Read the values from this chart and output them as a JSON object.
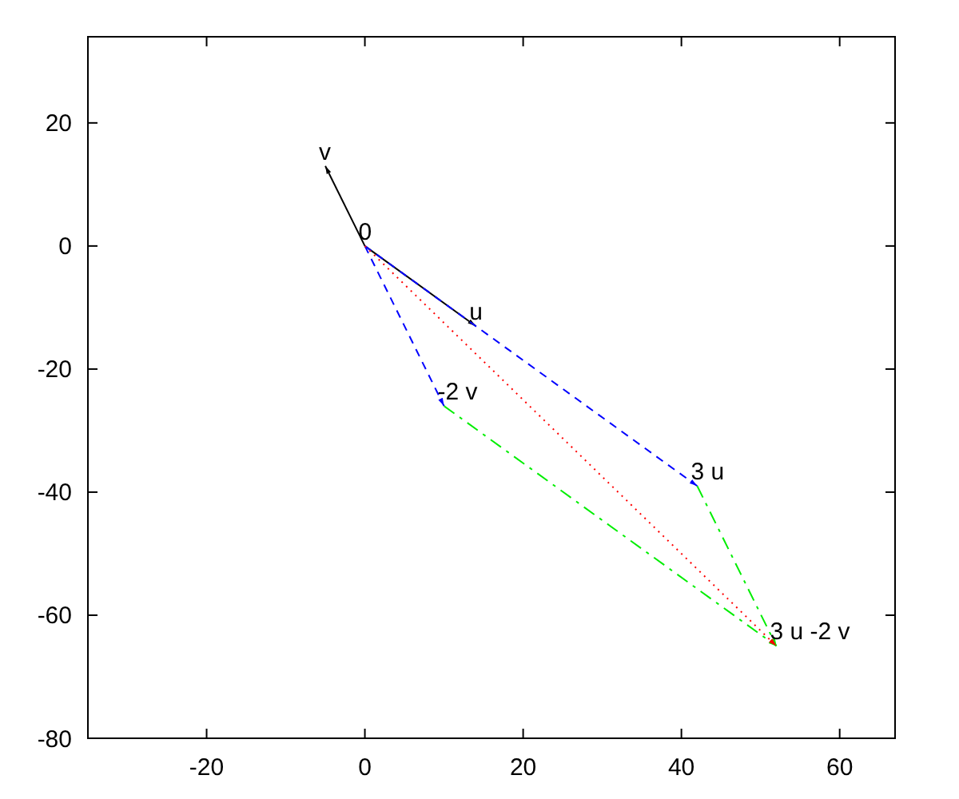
{
  "chart_data": {
    "type": "line",
    "xlim": [
      -35,
      67
    ],
    "ylim": [
      -80,
      34
    ],
    "xticks": [
      -20,
      0,
      20,
      40,
      60
    ],
    "yticks": [
      -80,
      -60,
      -40,
      -20,
      0,
      20
    ],
    "grid": false,
    "marker": "none",
    "series": [
      {
        "color": "#000000",
        "line_style": "solid",
        "x": [
          0,
          -5
        ],
        "values": [
          0,
          13
        ]
      },
      {
        "color": "#000000",
        "line_style": "solid",
        "x": [
          0,
          14
        ],
        "values": [
          0,
          -13
        ]
      },
      {
        "color": "#0000ff",
        "line_style": "dashed",
        "x": [
          0,
          10
        ],
        "values": [
          0,
          -26
        ]
      },
      {
        "color": "#0000ff",
        "line_style": "dashed",
        "x": [
          0,
          42
        ],
        "values": [
          0,
          -39
        ]
      },
      {
        "color": "#00ee00",
        "line_style": "dashdot",
        "x": [
          10,
          52
        ],
        "values": [
          -26,
          -65
        ]
      },
      {
        "color": "#00ee00",
        "line_style": "dashdot",
        "x": [
          42,
          52
        ],
        "values": [
          -39,
          -65
        ]
      },
      {
        "color": "#ff0000",
        "line_style": "dotted",
        "x": [
          0,
          52
        ],
        "values": [
          0,
          -65
        ]
      }
    ],
    "annotations": [
      {
        "text": "v",
        "x": -5,
        "y": 13
      },
      {
        "text": "0",
        "x": 0,
        "y": 0
      },
      {
        "text": "u",
        "x": 14,
        "y": -13
      },
      {
        "text": "-2 v",
        "x": 10,
        "y": -26
      },
      {
        "text": "3 u",
        "x": 42,
        "y": -39
      },
      {
        "text": "3 u -2 v",
        "x": 52,
        "y": -65
      }
    ]
  }
}
